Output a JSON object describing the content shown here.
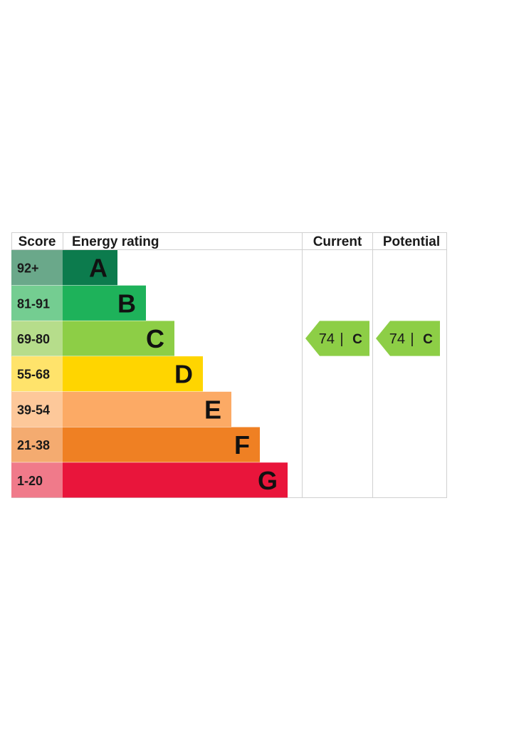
{
  "chart_data": {
    "type": "table",
    "headers": {
      "score": "Score",
      "rating": "Energy rating",
      "current": "Current",
      "potential": "Potential"
    },
    "bands": [
      {
        "score": "92+",
        "letter": "A",
        "color": "#0c7b4d",
        "score_bg": "#6aa88a"
      },
      {
        "score": "81-91",
        "letter": "B",
        "color": "#1eb25a",
        "score_bg": "#74cd91"
      },
      {
        "score": "69-80",
        "letter": "C",
        "color": "#8dce46",
        "score_bg": "#b6dd8b"
      },
      {
        "score": "55-68",
        "letter": "D",
        "color": "#ffd500",
        "score_bg": "#ffe36b"
      },
      {
        "score": "39-54",
        "letter": "E",
        "color": "#fcaa65",
        "score_bg": "#fdc89a"
      },
      {
        "score": "21-38",
        "letter": "F",
        "color": "#ef8023",
        "score_bg": "#f4ab70"
      },
      {
        "score": "1-20",
        "letter": "G",
        "color": "#e9153b",
        "score_bg": "#f07a8a"
      }
    ],
    "current": {
      "value": "74",
      "separator": "|",
      "letter": "C",
      "color": "#8dce46"
    },
    "potential": {
      "value": "74",
      "separator": "|",
      "letter": "C",
      "color": "#8dce46"
    }
  }
}
